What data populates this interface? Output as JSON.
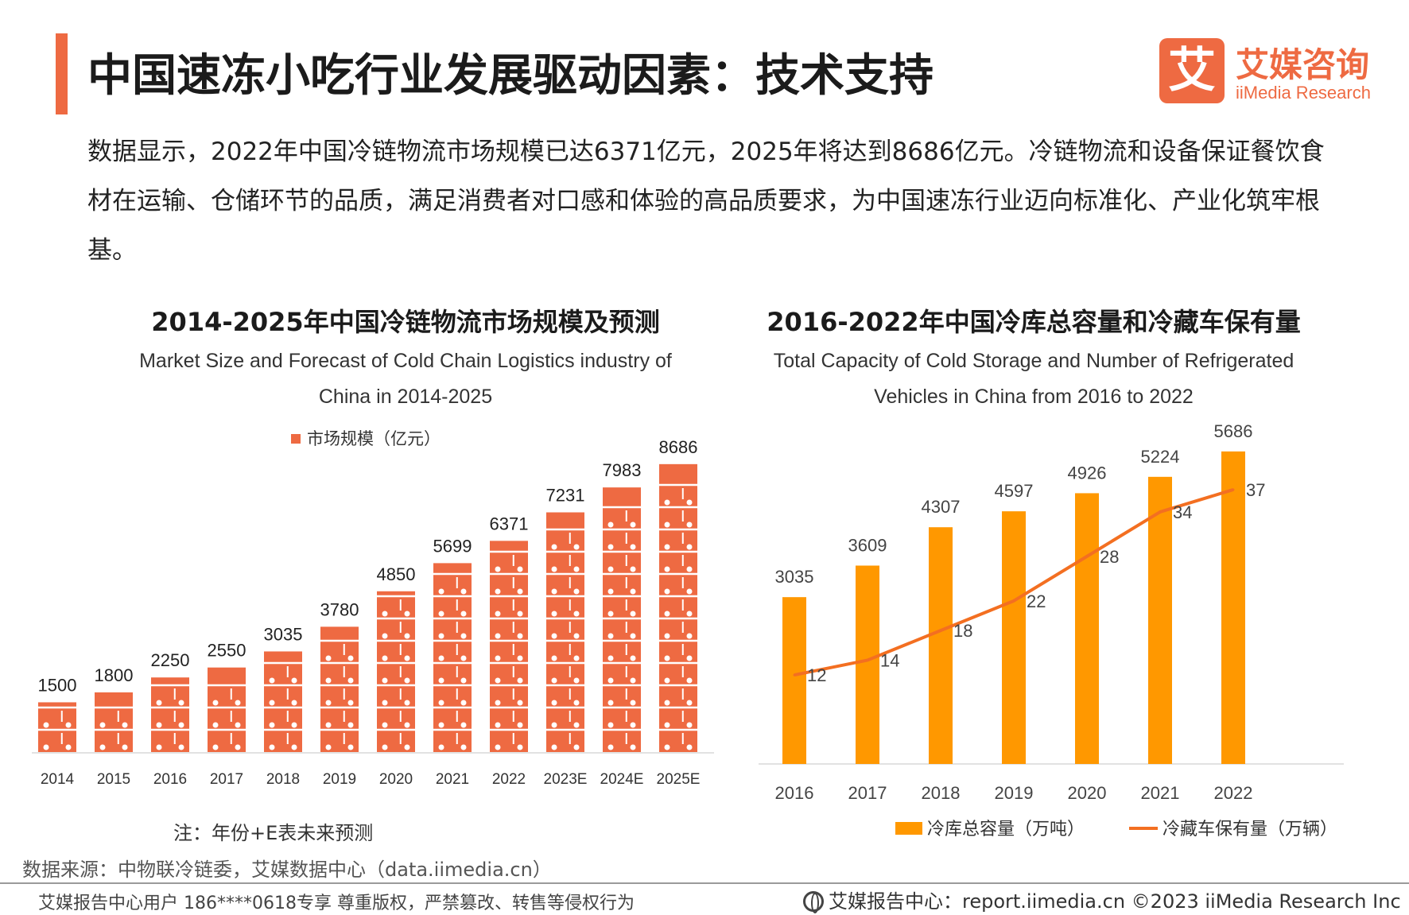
{
  "header": {
    "title": "中国速冻小吃行业发展驱动因素：技术支持",
    "logo_mark": "艾",
    "logo_cn": "艾媒咨询",
    "logo_en": "iiMedia Research"
  },
  "intro": "数据显示，2022年中国冷链物流市场规模已达6371亿元，2025年将达到8686亿元。冷链物流和设备保证餐饮食材在运输、仓储环节的品质，满足消费者对口感和体验的高品质要求，为中国速冻行业迈向标准化、产业化筑牢根基。",
  "colors": {
    "accent": "#ee6a42",
    "bar": "#ff9800",
    "line": "#f36f21"
  },
  "chart_data": [
    {
      "type": "bar",
      "title": "2014-2025年中国冷链物流市场规模及预测",
      "subtitle_line1": "Market Size and Forecast of Cold Chain Logistics industry of",
      "subtitle_line2": "China in 2014-2025",
      "legend": "市场规模（亿元）",
      "categories": [
        "2014",
        "2015",
        "2016",
        "2017",
        "2018",
        "2019",
        "2020",
        "2021",
        "2022",
        "2023E",
        "2024E",
        "2025E"
      ],
      "values": [
        1500,
        1800,
        2250,
        2550,
        3035,
        3780,
        4850,
        5699,
        6371,
        7231,
        7983,
        8686
      ],
      "ylim": [
        0,
        9000
      ],
      "note": "注：年份+E表未来预测"
    },
    {
      "type": "bar+line",
      "title": "2016-2022年中国冷库总容量和冷藏车保有量",
      "subtitle_line1": "Total Capacity of Cold Storage and Number of Refrigerated",
      "subtitle_line2": "Vehicles in China from 2016 to 2022",
      "categories": [
        "2016",
        "2017",
        "2018",
        "2019",
        "2020",
        "2021",
        "2022"
      ],
      "series": [
        {
          "name": "冷库总容量（万吨）",
          "kind": "bar",
          "values": [
            3035,
            3609,
            4307,
            4597,
            4926,
            5224,
            5686
          ]
        },
        {
          "name": "冷藏车保有量（万辆）",
          "kind": "line",
          "values": [
            12,
            14,
            18,
            22,
            28,
            34,
            37
          ]
        }
      ],
      "ylim_bar": [
        0,
        5800
      ],
      "ylim_line": [
        0,
        43
      ]
    }
  ],
  "source": "数据来源：中物联冷链委，艾媒数据中心（data.iimedia.cn）",
  "footer": {
    "left": "艾媒报告中心用户 186****0618专享 尊重版权，严禁篡改、转售等侵权行为",
    "right": "艾媒报告中心：report.iimedia.cn   ©2023  iiMedia Research  Inc"
  }
}
